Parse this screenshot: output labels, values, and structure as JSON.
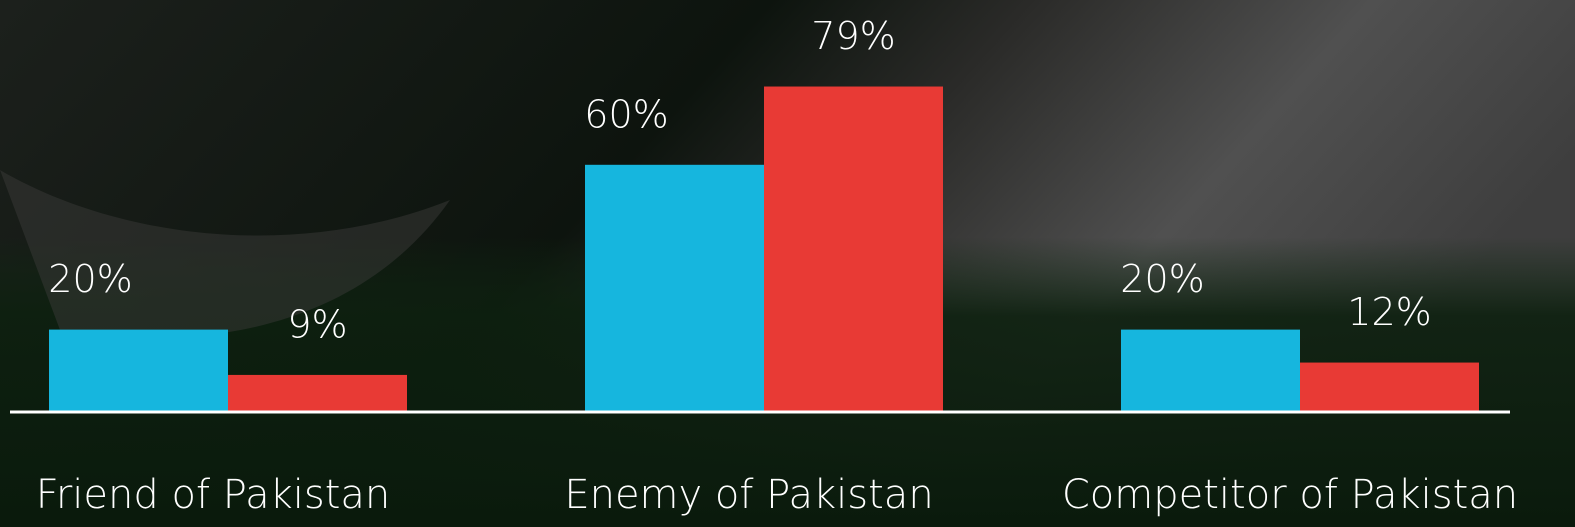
{
  "chart_data": {
    "type": "bar",
    "categories": [
      "Friend of Pakistan",
      "Enemy of Pakistan",
      "Competitor of Pakistan"
    ],
    "series": [
      {
        "color": "#16b6de",
        "values": [
          20,
          60,
          20
        ],
        "value_labels": [
          "20%",
          "60%",
          "20%"
        ]
      },
      {
        "color": "#e83a35",
        "values": [
          9,
          79,
          12
        ],
        "value_labels": [
          "9%",
          "79%",
          "12%"
        ]
      }
    ],
    "ylim": [
      0,
      100
    ]
  }
}
